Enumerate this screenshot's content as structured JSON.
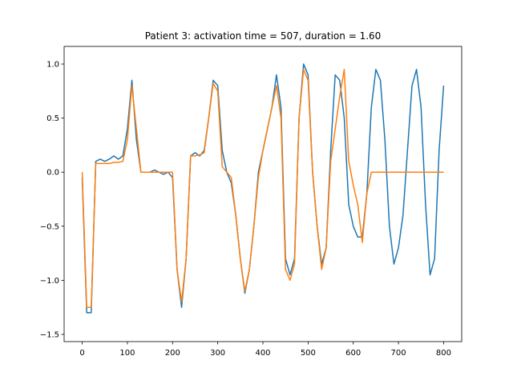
{
  "chart_data": {
    "type": "line",
    "title": "Patient 3: activation time = 507, duration = 1.60",
    "x": [
      0,
      10,
      20,
      30,
      40,
      50,
      60,
      70,
      80,
      90,
      100,
      110,
      120,
      130,
      140,
      150,
      160,
      170,
      180,
      190,
      200,
      210,
      220,
      230,
      240,
      250,
      260,
      270,
      280,
      290,
      300,
      310,
      320,
      330,
      340,
      350,
      360,
      370,
      380,
      390,
      400,
      410,
      420,
      430,
      440,
      450,
      460,
      470,
      480,
      490,
      500,
      510,
      520,
      530,
      540,
      550,
      560,
      570,
      580,
      590,
      600,
      610,
      620,
      630,
      640,
      650,
      660,
      670,
      680,
      690,
      700,
      710,
      720,
      730,
      740,
      750,
      760,
      770,
      780,
      790,
      800
    ],
    "series": [
      {
        "color": "#1f77b4",
        "values": [
          -0.05,
          -1.3,
          -1.3,
          0.1,
          0.12,
          0.1,
          0.12,
          0.15,
          0.12,
          0.15,
          0.4,
          0.85,
          0.3,
          0.0,
          0.0,
          0.0,
          0.02,
          0.0,
          -0.02,
          0.0,
          -0.05,
          -0.9,
          -1.25,
          -0.8,
          0.15,
          0.18,
          0.15,
          0.2,
          0.5,
          0.85,
          0.8,
          0.2,
          0.0,
          -0.1,
          -0.4,
          -0.8,
          -1.12,
          -0.9,
          -0.5,
          0.0,
          0.2,
          0.4,
          0.6,
          0.9,
          0.6,
          -0.8,
          -0.95,
          -0.8,
          0.5,
          1.0,
          0.9,
          0.0,
          -0.5,
          -0.85,
          -0.7,
          0.2,
          0.9,
          0.85,
          0.5,
          -0.3,
          -0.5,
          -0.6,
          -0.6,
          -0.2,
          0.6,
          0.95,
          0.85,
          0.3,
          -0.5,
          -0.85,
          -0.7,
          -0.4,
          0.2,
          0.8,
          0.95,
          0.6,
          -0.3,
          -0.95,
          -0.8,
          0.2,
          0.8
        ]
      },
      {
        "color": "#ff7f0e",
        "values": [
          0.0,
          -1.25,
          -1.25,
          0.08,
          0.08,
          0.08,
          0.08,
          0.09,
          0.09,
          0.1,
          0.3,
          0.8,
          0.4,
          0.0,
          0.0,
          0.0,
          0.0,
          0.0,
          0.0,
          0.0,
          0.0,
          -0.9,
          -1.2,
          -0.8,
          0.15,
          0.15,
          0.16,
          0.18,
          0.5,
          0.82,
          0.75,
          0.05,
          0.0,
          -0.05,
          -0.4,
          -0.8,
          -1.1,
          -0.9,
          -0.5,
          -0.05,
          0.2,
          0.4,
          0.6,
          0.8,
          0.5,
          -0.9,
          -1.0,
          -0.85,
          0.5,
          0.95,
          0.85,
          0.0,
          -0.5,
          -0.9,
          -0.7,
          0.1,
          0.4,
          0.7,
          0.95,
          0.1,
          -0.12,
          -0.3,
          -0.65,
          -0.2,
          0.0,
          0.0,
          0.0,
          0.0,
          0.0,
          0.0,
          0.0,
          0.0,
          0.0,
          0.0,
          0.0,
          0.0,
          0.0,
          0.0,
          0.0,
          0.0,
          0.0
        ]
      }
    ],
    "xlim": [
      -40,
      840
    ],
    "xticks": [
      0,
      100,
      200,
      300,
      400,
      500,
      600,
      700,
      800
    ],
    "ylim": [
      -1.567,
      1.163
    ],
    "yticks": [
      {
        "value": -1.5,
        "label": "−1.5"
      },
      {
        "value": -1.0,
        "label": "−1.0"
      },
      {
        "value": -0.5,
        "label": "−0.5"
      },
      {
        "value": 0.0,
        "label": "0.0"
      },
      {
        "value": 0.5,
        "label": "0.5"
      },
      {
        "value": 1.0,
        "label": "1.0"
      }
    ]
  }
}
